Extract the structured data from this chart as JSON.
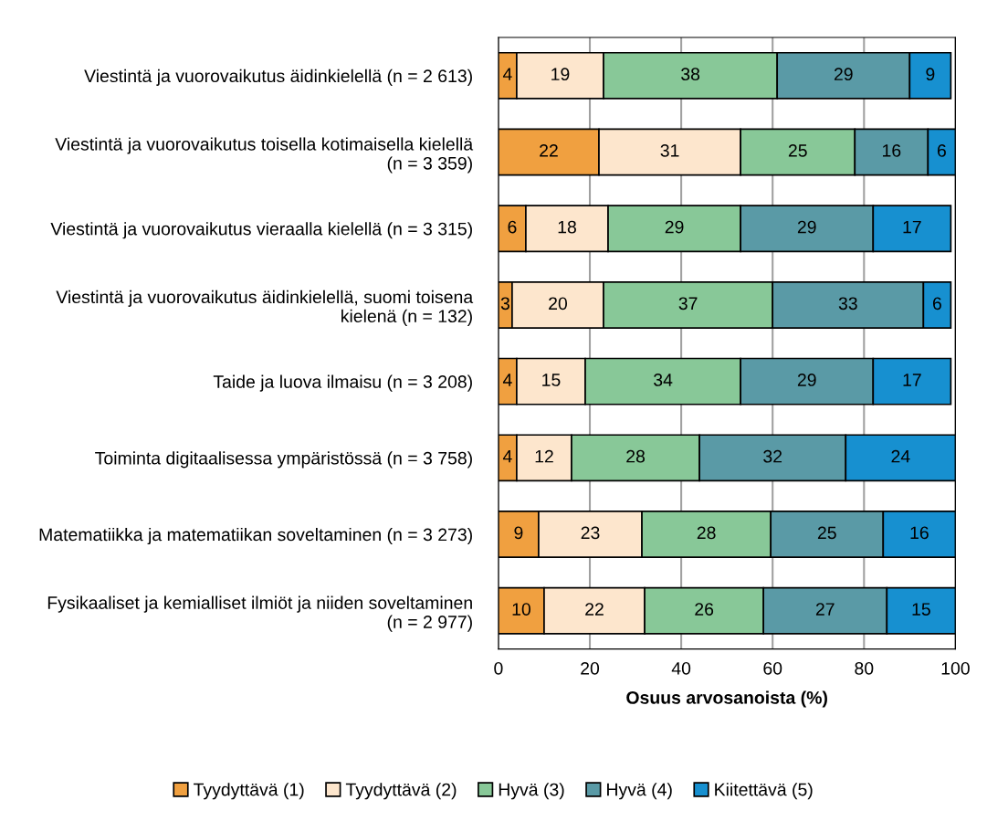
{
  "chart_data": {
    "type": "bar",
    "orientation": "horizontal",
    "stacked": true,
    "categories": [
      "Viestintä ja vuorovaikutus äidinkielellä (n = 2 613)",
      "Viestintä ja vuorovaikutus toisella kotimaisella kielellä\n(n = 3 359)",
      "Viestintä ja vuorovaikutus vieraalla kielellä (n = 3 315)",
      "Viestintä ja vuorovaikutus äidinkielellä, suomi toisena\nkielenä (n = 132)",
      "Taide ja luova ilmaisu (n = 3 208)",
      "Toiminta digitaalisessa ympäristössä (n = 3 758)",
      "Matematiikka ja matematiikan soveltaminen (n = 3 273)",
      "Fysikaaliset ja kemialliset ilmiöt ja niiden soveltaminen\n(n = 2 977)"
    ],
    "series": [
      {
        "name": "Tyydyttävä (1)",
        "color": "#f0a040",
        "values": [
          4,
          22,
          6,
          3,
          4,
          4,
          8.8,
          10
        ],
        "value_labels": [
          "4",
          "22",
          "6",
          "3",
          "4",
          "4",
          "9",
          "10"
        ]
      },
      {
        "name": "Tyydyttävä (2)",
        "color": "#fde6cd",
        "values": [
          19,
          31,
          18,
          20,
          15,
          12,
          22.6,
          22
        ],
        "value_labels": [
          "19",
          "31",
          "18",
          "20",
          "15",
          "12",
          "23",
          "22"
        ]
      },
      {
        "name": "Hyvä (3)",
        "color": "#88c898",
        "values": [
          38,
          25,
          29,
          37,
          34,
          28,
          28.2,
          26
        ],
        "value_labels": [
          "38",
          "25",
          "29",
          "37",
          "34",
          "28",
          "28",
          "26"
        ]
      },
      {
        "name": "Hyvä (4)",
        "color": "#5a9aa6",
        "values": [
          29,
          16,
          29,
          33,
          29,
          32,
          24.6,
          27
        ],
        "value_labels": [
          "29",
          "16",
          "29",
          "33",
          "29",
          "32",
          "25",
          "27"
        ]
      },
      {
        "name": "Kiitettävä (5)",
        "color": "#1790d0",
        "values": [
          9,
          6,
          17,
          6,
          17,
          24,
          15.8,
          15
        ],
        "value_labels": [
          "9",
          "6",
          "17",
          "6",
          "17",
          "24",
          "16",
          "15"
        ]
      }
    ],
    "xlabel": "Osuus arvosanoista (%)",
    "xlim": [
      0,
      100
    ],
    "xticks": [
      0,
      20,
      40,
      60,
      80,
      100
    ],
    "grid": "x",
    "legend": "bottom"
  }
}
